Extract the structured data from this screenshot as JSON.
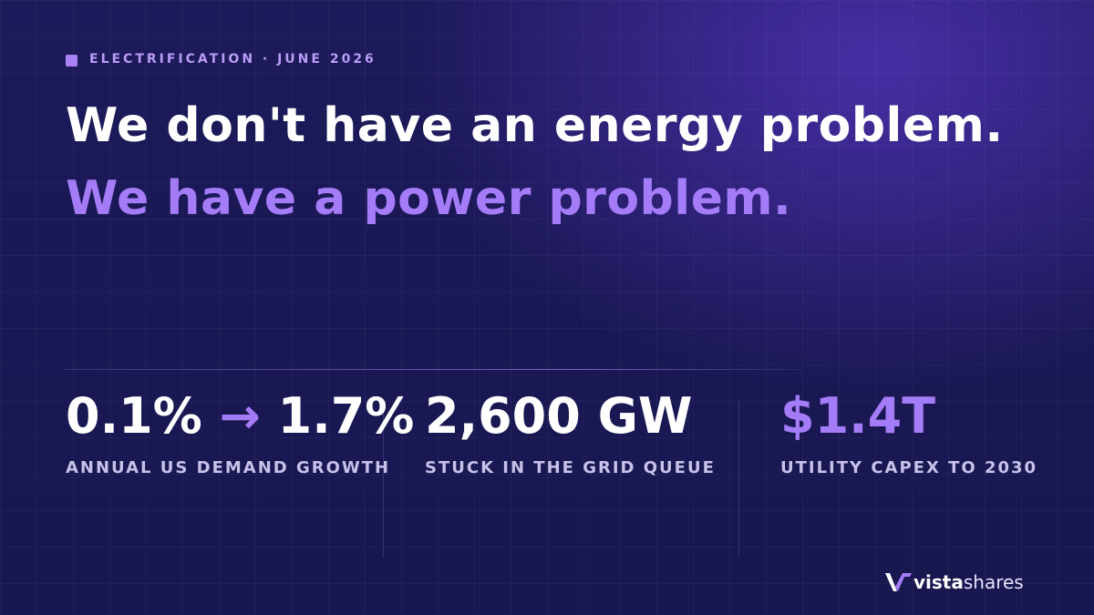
{
  "eyebrow": "ELECTRIFICATION · JUNE 2026",
  "headline": {
    "line1": "We don't have an energy problem.",
    "line2": "We have a power problem."
  },
  "stats": [
    {
      "from": "0.1%",
      "arrow": "→",
      "to": "1.7%",
      "label": "ANNUAL US DEMAND GROWTH"
    },
    {
      "value": "2,600 GW",
      "label": "STUCK IN THE GRID QUEUE"
    },
    {
      "value": "$1.4T",
      "label": "UTILITY CAPEX TO 2030"
    }
  ],
  "logo": {
    "bold": "vista",
    "light": "shares"
  }
}
